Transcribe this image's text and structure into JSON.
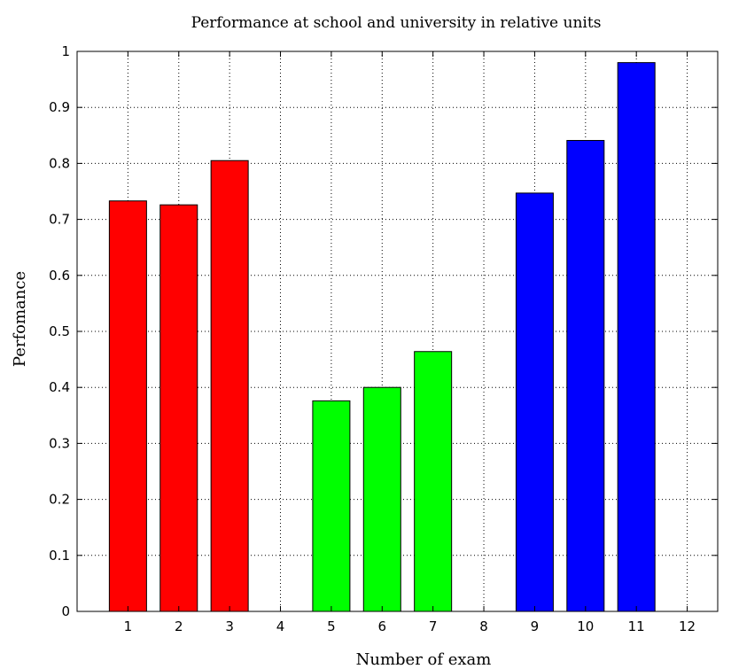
{
  "chart_data": {
    "type": "bar",
    "title": "Performance at school and university in relative units",
    "xlabel": "Number of exam",
    "ylabel": "Perfomance",
    "categories": [
      "1",
      "2",
      "3",
      "4",
      "5",
      "6",
      "7",
      "8",
      "9",
      "10",
      "11",
      "12"
    ],
    "x": [
      1,
      2,
      3,
      4,
      5,
      6,
      7,
      8,
      9,
      10,
      11,
      12
    ],
    "series": [
      {
        "color": "#ff0000",
        "values": [
          0.733,
          0.726,
          0.805,
          null,
          null,
          null,
          null,
          null,
          null,
          null,
          null,
          null
        ]
      },
      {
        "color": "#00ff00",
        "values": [
          null,
          null,
          null,
          null,
          0.376,
          0.4,
          0.464,
          null,
          null,
          null,
          null,
          null
        ]
      },
      {
        "color": "#0000ff",
        "values": [
          null,
          null,
          null,
          null,
          null,
          null,
          null,
          null,
          0.747,
          0.841,
          0.98,
          null
        ]
      }
    ],
    "xlim": [
      0,
      12.6
    ],
    "ylim": [
      0,
      1
    ],
    "yticks": [
      "0",
      "0.1",
      "0.2",
      "0.3",
      "0.4",
      "0.5",
      "0.6",
      "0.7",
      "0.8",
      "0.9",
      "1"
    ],
    "grid": true,
    "legend": "none"
  }
}
